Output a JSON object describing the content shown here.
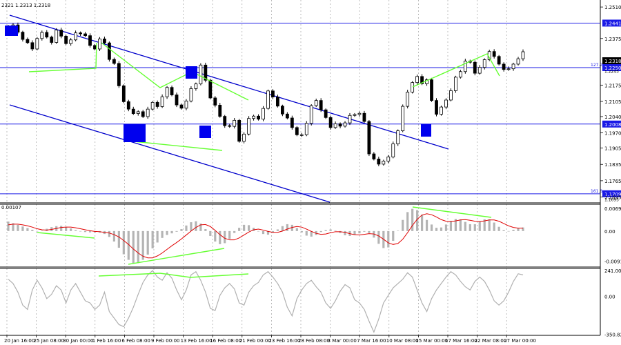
{
  "header": {
    "ohlc": "2321 1.2313 1.2318"
  },
  "colors": {
    "candles": "#000000",
    "channel": "#0000cc",
    "level": "#1a1ae6",
    "level_label_bg": "#1a1ae6",
    "current_label_bg": "#000000",
    "divergence": "#66ff33",
    "macd_hist": "#b4b4b4",
    "macd_signal": "#e00000",
    "cci": "#b0b0b0",
    "grid": "#909090"
  },
  "chart_data": [
    {
      "type": "candlestick",
      "panel": "price",
      "x_ticks": [
        "20 Jan 16:00",
        "25 Jan 08:00",
        "30 Jan 00:00",
        "1 Feb 16:00",
        "6 Feb 08:00",
        "9 Feb 00:00",
        "13 Feb 16:00",
        "16 Feb 08:00",
        "21 Feb 00:00",
        "23 Feb 16:00",
        "28 Feb 08:00",
        "3 Mar 00:00",
        "7 Mar 16:00",
        "10 Mar 08:00",
        "15 Mar 00:00",
        "17 Mar 16:00",
        "22 Mar 08:00",
        "27 Mar 00:00"
      ],
      "y_ticks": [
        "1.2510",
        "1.2375",
        "1.2175",
        "1.2105",
        "1.2040",
        "1.1970",
        "1.1905",
        "1.1835",
        "1.1765",
        "1.1695"
      ],
      "ylim": [
        1.167,
        1.254
      ],
      "close": [
        1.2415,
        1.2433,
        1.2402,
        1.2371,
        1.2357,
        1.233,
        1.2375,
        1.2401,
        1.2381,
        1.2358,
        1.2411,
        1.2385,
        1.2353,
        1.2369,
        1.2399,
        1.2395,
        1.2387,
        1.2345,
        1.233,
        1.2373,
        1.2356,
        1.2285,
        1.2268,
        1.2172,
        1.2104,
        1.2072,
        1.2053,
        1.2061,
        1.204,
        1.2072,
        1.2101,
        1.2083,
        1.2125,
        1.2165,
        1.2133,
        1.209,
        1.2076,
        1.2107,
        1.216,
        1.218,
        1.2261,
        1.2196,
        1.212,
        1.2089,
        1.2041,
        1.2001,
        1.1998,
        1.2024,
        1.1934,
        1.1965,
        1.2032,
        1.2042,
        1.2029,
        1.2075,
        1.215,
        1.2124,
        1.2085,
        1.2051,
        1.2034,
        1.1993,
        1.1962,
        1.1962,
        1.2011,
        1.2087,
        1.2109,
        1.2069,
        1.2036,
        1.1993,
        1.2009,
        1.1999,
        1.2013,
        1.2045,
        1.2049,
        1.2054,
        1.2019,
        1.188,
        1.1858,
        1.1836,
        1.1849,
        1.1867,
        1.1923,
        1.1979,
        1.2084,
        1.2145,
        1.2186,
        1.2212,
        1.2181,
        1.2198,
        1.2109,
        1.205,
        1.2081,
        1.2111,
        1.2151,
        1.2209,
        1.2233,
        1.2278,
        1.2273,
        1.2226,
        1.2251,
        1.2284,
        1.2319,
        1.2298,
        1.2265,
        1.2242,
        1.2245,
        1.2265,
        1.2288,
        1.2318
      ],
      "levels": [
        {
          "label": "1.2441",
          "value": 1.2441
        },
        {
          "label": "1.2250",
          "value": 1.225,
          "note": "127.2"
        },
        {
          "label": "1.2008",
          "value": 1.2008
        },
        {
          "label": "1.1709",
          "value": 1.1709,
          "note": "161.8"
        }
      ],
      "current_price": "1.2318",
      "extra_labels": [
        "1.2245",
        "1.1695"
      ]
    },
    {
      "type": "bar",
      "panel": "macd",
      "title": "0.00107",
      "y_ticks": [
        "0.00691",
        "0.00",
        "-0.00917"
      ],
      "ylim": [
        -0.011,
        0.0082
      ],
      "histogram": [
        0.0029,
        0.0024,
        0.0019,
        0.0014,
        0.0009,
        0.0004,
        0.0,
        0.0001,
        0.0007,
        0.0012,
        0.0015,
        0.0016,
        0.0013,
        0.0008,
        0.0003,
        -0.0001,
        -0.0003,
        -0.0004,
        -0.0004,
        -0.0005,
        -0.0009,
        -0.0018,
        -0.0032,
        -0.0051,
        -0.0071,
        -0.0088,
        -0.0098,
        -0.0098,
        -0.0088,
        -0.0072,
        -0.0053,
        -0.0035,
        -0.0021,
        -0.0012,
        -0.0007,
        -0.0002,
        0.0006,
        0.0017,
        0.0027,
        0.003,
        0.0023,
        0.0006,
        -0.0015,
        -0.0032,
        -0.004,
        -0.0037,
        -0.0024,
        -0.0006,
        0.001,
        0.0019,
        0.0018,
        0.001,
        -0.0001,
        -0.0009,
        -0.0011,
        -0.0005,
        0.0005,
        0.0015,
        0.0021,
        0.0019,
        0.0009,
        -0.0004,
        -0.0014,
        -0.0017,
        -0.0012,
        -0.0003,
        0.0003,
        0.0005,
        0.0001,
        -0.0006,
        -0.0013,
        -0.0015,
        -0.0012,
        -0.0007,
        -0.0002,
        -0.0006,
        -0.002,
        -0.0039,
        -0.0052,
        -0.005,
        -0.003,
        0.0001,
        0.0034,
        0.0058,
        0.0068,
        0.0064,
        0.005,
        0.0034,
        0.002,
        0.001,
        0.0011,
        0.002,
        0.0031,
        0.0037,
        0.0036,
        0.0028,
        0.0021,
        0.0021,
        0.0029,
        0.0036,
        0.0036,
        0.0026,
        0.0013,
        0.0003,
        0.0,
        0.0004,
        0.0009,
        0.0011
      ],
      "signal": [
        0.0019,
        0.0021,
        0.0021,
        0.0019,
        0.0016,
        0.0012,
        0.0007,
        0.0004,
        0.0003,
        0.0005,
        0.0008,
        0.0011,
        0.0012,
        0.0012,
        0.001,
        0.0007,
        0.0004,
        0.0001,
        -0.0001,
        -0.0002,
        -0.0004,
        -0.0006,
        -0.0011,
        -0.0018,
        -0.0029,
        -0.0041,
        -0.0055,
        -0.0067,
        -0.0077,
        -0.0082,
        -0.0082,
        -0.0076,
        -0.0067,
        -0.0056,
        -0.0045,
        -0.0035,
        -0.0024,
        -0.0012,
        0.0,
        0.0011,
        0.0019,
        0.002,
        0.0014,
        0.0002,
        -0.0011,
        -0.0022,
        -0.0027,
        -0.0027,
        -0.0021,
        -0.0012,
        -0.0003,
        0.0004,
        0.0006,
        0.0003,
        -0.0001,
        -0.0004,
        -0.0004,
        0.0,
        0.0006,
        0.0011,
        0.0014,
        0.0012,
        0.0006,
        -0.0001,
        -0.0007,
        -0.001,
        -0.0009,
        -0.0005,
        -0.0002,
        -0.0002,
        -0.0004,
        -0.0008,
        -0.0011,
        -0.0012,
        -0.001,
        -0.0008,
        -0.0009,
        -0.0015,
        -0.0025,
        -0.0036,
        -0.0041,
        -0.0038,
        -0.0025,
        -0.0005,
        0.0017,
        0.0036,
        0.0049,
        0.0053,
        0.005,
        0.0043,
        0.0035,
        0.003,
        0.0029,
        0.0031,
        0.0034,
        0.0035,
        0.0033,
        0.003,
        0.0029,
        0.0031,
        0.0034,
        0.0034,
        0.003,
        0.0023,
        0.0016,
        0.0011,
        0.0009,
        0.0009
      ]
    },
    {
      "type": "line",
      "panel": "cci",
      "y_ticks": [
        "241.0049",
        "0.00",
        "-350.822"
      ],
      "ylim": [
        -360,
        260
      ],
      "values": [
        160,
        120,
        40,
        -80,
        -120,
        60,
        150,
        80,
        -20,
        20,
        100,
        60,
        -60,
        60,
        120,
        40,
        -40,
        -60,
        -120,
        -80,
        40,
        -140,
        -200,
        -260,
        -280,
        -200,
        -100,
        20,
        130,
        200,
        240,
        180,
        150,
        220,
        170,
        60,
        -30,
        60,
        200,
        230,
        150,
        40,
        -110,
        -130,
        10,
        80,
        120,
        70,
        -60,
        -80,
        40,
        100,
        130,
        200,
        230,
        180,
        120,
        40,
        -100,
        -180,
        -20,
        60,
        120,
        150,
        90,
        40,
        -60,
        -110,
        -40,
        50,
        110,
        80,
        -30,
        -60,
        -120,
        -230,
        -330,
        -210,
        -60,
        10,
        80,
        120,
        160,
        220,
        180,
        60,
        -60,
        -140,
        -20,
        60,
        120,
        180,
        230,
        200,
        140,
        90,
        60,
        140,
        180,
        140,
        60,
        -40,
        -80,
        -40,
        40,
        140,
        210,
        200
      ]
    }
  ]
}
